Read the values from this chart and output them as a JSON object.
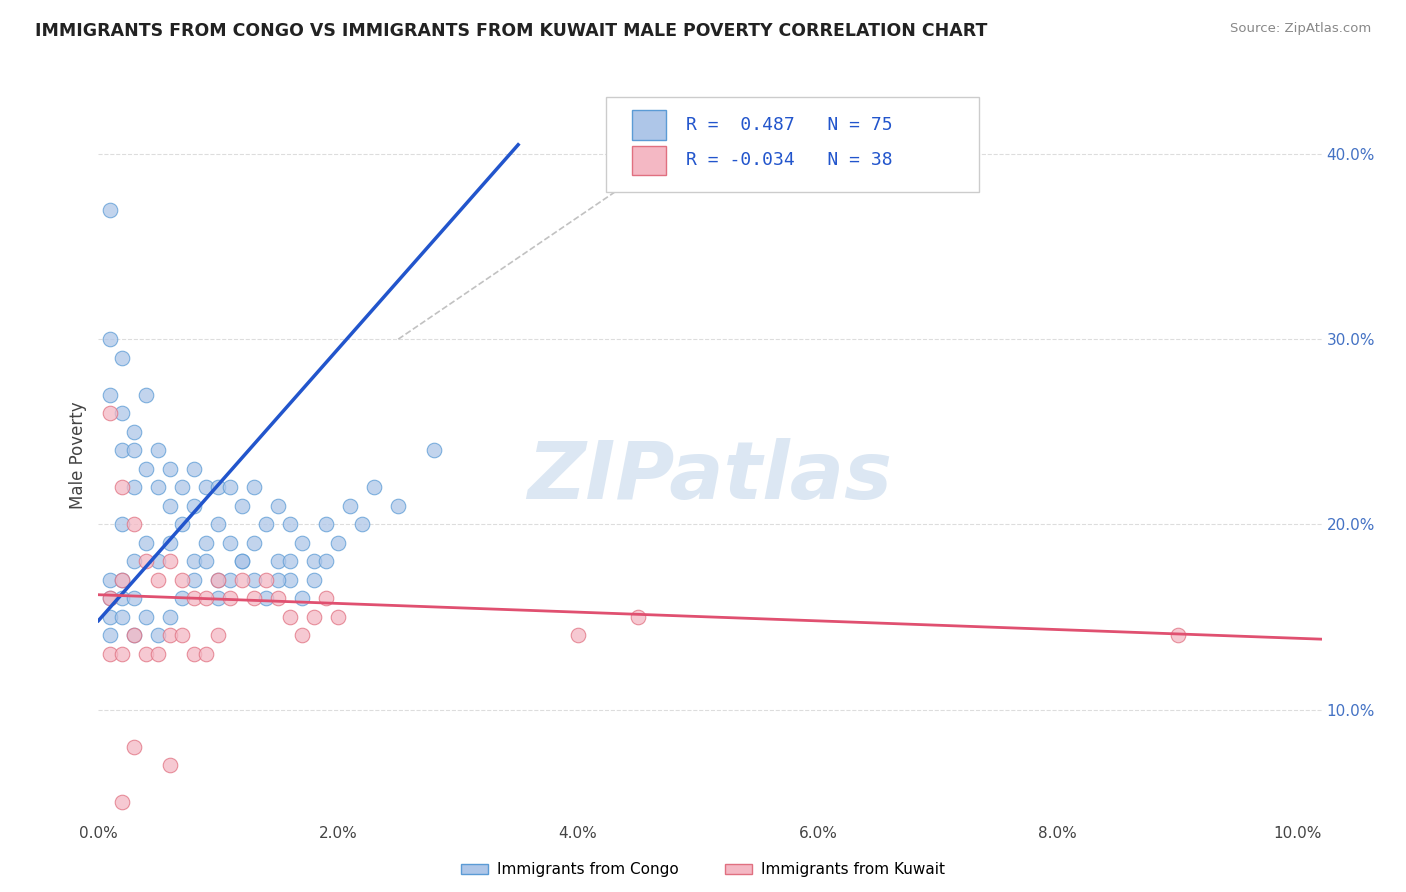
{
  "title": "IMMIGRANTS FROM CONGO VS IMMIGRANTS FROM KUWAIT MALE POVERTY CORRELATION CHART",
  "source": "Source: ZipAtlas.com",
  "ylabel": "Male Poverty",
  "xlim": [
    0.0,
    0.102
  ],
  "ylim": [
    0.04,
    0.435
  ],
  "xticks": [
    0.0,
    0.02,
    0.04,
    0.06,
    0.08,
    0.1
  ],
  "xticklabels": [
    "0.0%",
    "2.0%",
    "4.0%",
    "6.0%",
    "8.0%",
    "10.0%"
  ],
  "yticks_right": [
    0.1,
    0.2,
    0.3,
    0.4
  ],
  "ytick_labels_right": [
    "10.0%",
    "20.0%",
    "30.0%",
    "40.0%"
  ],
  "congo_color": "#aec6e8",
  "congo_edge_color": "#5b9bd5",
  "kuwait_color": "#f4b8c4",
  "kuwait_edge_color": "#e07080",
  "congo_line_color": "#2255cc",
  "kuwait_line_color": "#e05070",
  "ref_line_color": "#bbbbbb",
  "R_congo": 0.487,
  "N_congo": 75,
  "R_kuwait": -0.034,
  "N_kuwait": 38,
  "watermark": "ZIPatlas",
  "watermark_color": "#c5d8ec",
  "legend_label_congo": "Immigrants from Congo",
  "legend_label_kuwait": "Immigrants from Kuwait",
  "background_color": "#ffffff",
  "grid_color": "#dddddd",
  "title_color": "#222222",
  "congo_line_x": [
    0.0,
    0.035
  ],
  "congo_line_y": [
    0.148,
    0.405
  ],
  "kuwait_line_x": [
    0.0,
    0.102
  ],
  "kuwait_line_y": [
    0.162,
    0.138
  ],
  "ref_line_x": [
    0.025,
    0.05
  ],
  "ref_line_y": [
    0.3,
    0.41
  ],
  "congo_x": [
    0.001,
    0.001,
    0.001,
    0.001,
    0.002,
    0.002,
    0.002,
    0.002,
    0.002,
    0.003,
    0.003,
    0.003,
    0.003,
    0.004,
    0.004,
    0.004,
    0.005,
    0.005,
    0.005,
    0.006,
    0.006,
    0.006,
    0.007,
    0.007,
    0.008,
    0.008,
    0.008,
    0.009,
    0.009,
    0.01,
    0.01,
    0.01,
    0.011,
    0.011,
    0.012,
    0.012,
    0.013,
    0.013,
    0.014,
    0.015,
    0.015,
    0.016,
    0.016,
    0.017,
    0.018,
    0.019,
    0.02,
    0.021,
    0.022,
    0.023,
    0.025,
    0.028,
    0.001,
    0.001,
    0.001,
    0.002,
    0.002,
    0.003,
    0.003,
    0.004,
    0.005,
    0.006,
    0.007,
    0.008,
    0.009,
    0.01,
    0.011,
    0.012,
    0.013,
    0.014,
    0.015,
    0.016,
    0.017,
    0.018,
    0.019
  ],
  "congo_y": [
    0.37,
    0.3,
    0.27,
    0.17,
    0.29,
    0.26,
    0.24,
    0.2,
    0.16,
    0.25,
    0.24,
    0.22,
    0.18,
    0.27,
    0.23,
    0.19,
    0.24,
    0.22,
    0.18,
    0.23,
    0.21,
    0.19,
    0.22,
    0.2,
    0.23,
    0.21,
    0.18,
    0.22,
    0.19,
    0.22,
    0.2,
    0.17,
    0.22,
    0.19,
    0.21,
    0.18,
    0.22,
    0.19,
    0.2,
    0.21,
    0.18,
    0.2,
    0.17,
    0.19,
    0.18,
    0.2,
    0.19,
    0.21,
    0.2,
    0.22,
    0.21,
    0.24,
    0.16,
    0.15,
    0.14,
    0.17,
    0.15,
    0.16,
    0.14,
    0.15,
    0.14,
    0.15,
    0.16,
    0.17,
    0.18,
    0.16,
    0.17,
    0.18,
    0.17,
    0.16,
    0.17,
    0.18,
    0.16,
    0.17,
    0.18
  ],
  "kuwait_x": [
    0.001,
    0.001,
    0.001,
    0.002,
    0.002,
    0.002,
    0.003,
    0.003,
    0.004,
    0.004,
    0.005,
    0.005,
    0.006,
    0.006,
    0.007,
    0.007,
    0.008,
    0.008,
    0.009,
    0.009,
    0.01,
    0.01,
    0.011,
    0.012,
    0.013,
    0.014,
    0.015,
    0.016,
    0.017,
    0.018,
    0.019,
    0.02,
    0.04,
    0.045,
    0.09,
    0.003,
    0.006,
    0.002
  ],
  "kuwait_y": [
    0.26,
    0.16,
    0.13,
    0.22,
    0.17,
    0.13,
    0.2,
    0.14,
    0.18,
    0.13,
    0.17,
    0.13,
    0.18,
    0.14,
    0.17,
    0.14,
    0.16,
    0.13,
    0.16,
    0.13,
    0.17,
    0.14,
    0.16,
    0.17,
    0.16,
    0.17,
    0.16,
    0.15,
    0.14,
    0.15,
    0.16,
    0.15,
    0.14,
    0.15,
    0.14,
    0.08,
    0.07,
    0.05
  ]
}
